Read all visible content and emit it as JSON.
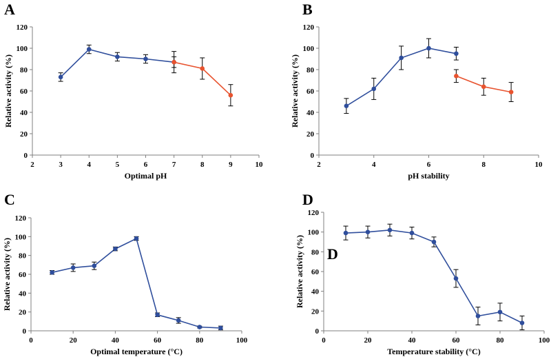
{
  "colors": {
    "blue": "#2f4e9c",
    "red": "#e8532f",
    "axis": "#7f7f7f",
    "errorbar": "#000000"
  },
  "chart_data": [
    {
      "panel": "A",
      "type": "line",
      "xlabel": "Optimal pH",
      "ylabel": "Relative activity (%)",
      "xlim": [
        2,
        10
      ],
      "ylim": [
        0,
        120
      ],
      "xticks": [
        2,
        3,
        4,
        5,
        6,
        7,
        8,
        9,
        10
      ],
      "yticks": [
        0,
        20,
        40,
        60,
        80,
        100,
        120
      ],
      "series": [
        {
          "color": "blue",
          "x": [
            3,
            4,
            5,
            6,
            7
          ],
          "y": [
            73,
            99,
            92,
            90,
            87
          ],
          "err": [
            4,
            4,
            4,
            4,
            5
          ]
        },
        {
          "color": "red",
          "x": [
            7,
            8,
            9
          ],
          "y": [
            87,
            81,
            56
          ],
          "err": [
            10,
            10,
            10
          ]
        }
      ]
    },
    {
      "panel": "B",
      "type": "line",
      "xlabel": "pH stability",
      "ylabel": "Relative activity (%)",
      "xlim": [
        2,
        10
      ],
      "ylim": [
        0,
        120
      ],
      "xticks": [
        2,
        4,
        6,
        8,
        10
      ],
      "yticks": [
        0,
        20,
        40,
        60,
        80,
        100,
        120
      ],
      "series": [
        {
          "color": "blue",
          "x": [
            3,
            4,
            5,
            6,
            7
          ],
          "y": [
            46,
            62,
            91,
            100,
            95
          ],
          "err": [
            7,
            10,
            11,
            9,
            6
          ]
        },
        {
          "color": "red",
          "x": [
            7,
            8,
            9
          ],
          "y": [
            74,
            64,
            59
          ],
          "err": [
            6,
            8,
            9
          ]
        }
      ]
    },
    {
      "panel": "C",
      "type": "line",
      "xlabel": "Optimal temperature (°C)",
      "ylabel": "Relative activity (%)",
      "xlim": [
        0,
        100
      ],
      "ylim": [
        0,
        120
      ],
      "xticks": [
        0,
        20,
        40,
        60,
        80,
        100
      ],
      "yticks": [
        0,
        20,
        40,
        60,
        80,
        100,
        120
      ],
      "series": [
        {
          "color": "blue",
          "x": [
            10,
            20,
            30,
            40,
            50,
            60,
            70,
            80,
            90
          ],
          "y": [
            62,
            67,
            69,
            87,
            98,
            17,
            11,
            4,
            3
          ],
          "err": [
            2,
            4,
            4,
            2,
            2,
            2,
            3,
            1,
            2
          ]
        }
      ]
    },
    {
      "panel": "D",
      "type": "line",
      "xlabel": "Temperature stability (°C)",
      "ylabel": "Relative activity (%)",
      "xlim": [
        0,
        100
      ],
      "ylim": [
        0,
        120
      ],
      "xticks": [
        0,
        20,
        40,
        60,
        80,
        100
      ],
      "yticks": [
        0,
        20,
        40,
        60,
        80,
        100,
        120
      ],
      "annotation": "D",
      "series": [
        {
          "color": "blue",
          "x": [
            10,
            20,
            30,
            40,
            50,
            60,
            70,
            80,
            90
          ],
          "y": [
            99,
            100,
            102,
            99,
            90,
            53,
            15,
            19,
            8
          ],
          "err": [
            7,
            6,
            6,
            6,
            5,
            9,
            9,
            9,
            7
          ]
        }
      ]
    }
  ]
}
